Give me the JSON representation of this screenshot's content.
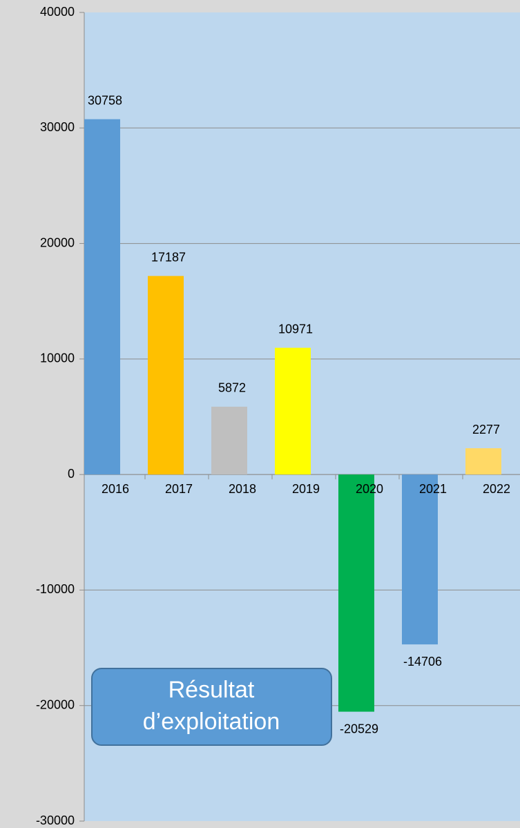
{
  "chart_data": {
    "type": "bar",
    "categories": [
      "2016",
      "2017",
      "2018",
      "2019",
      "2020",
      "2021",
      "2022"
    ],
    "values": [
      30758,
      17187,
      5872,
      10971,
      -20529,
      -14706,
      2277
    ],
    "colors": [
      "#5b9bd5",
      "#ffc000",
      "#bfbfbf",
      "#ffff00",
      "#00b050",
      "#5b9bd5",
      "#ffd966"
    ],
    "ylim": [
      -30000,
      40000
    ],
    "yticks": [
      -30000,
      -20000,
      -10000,
      0,
      10000,
      20000,
      30000,
      40000
    ],
    "grid": true,
    "annotation": [
      "Résultat",
      "d’exploitation"
    ]
  }
}
